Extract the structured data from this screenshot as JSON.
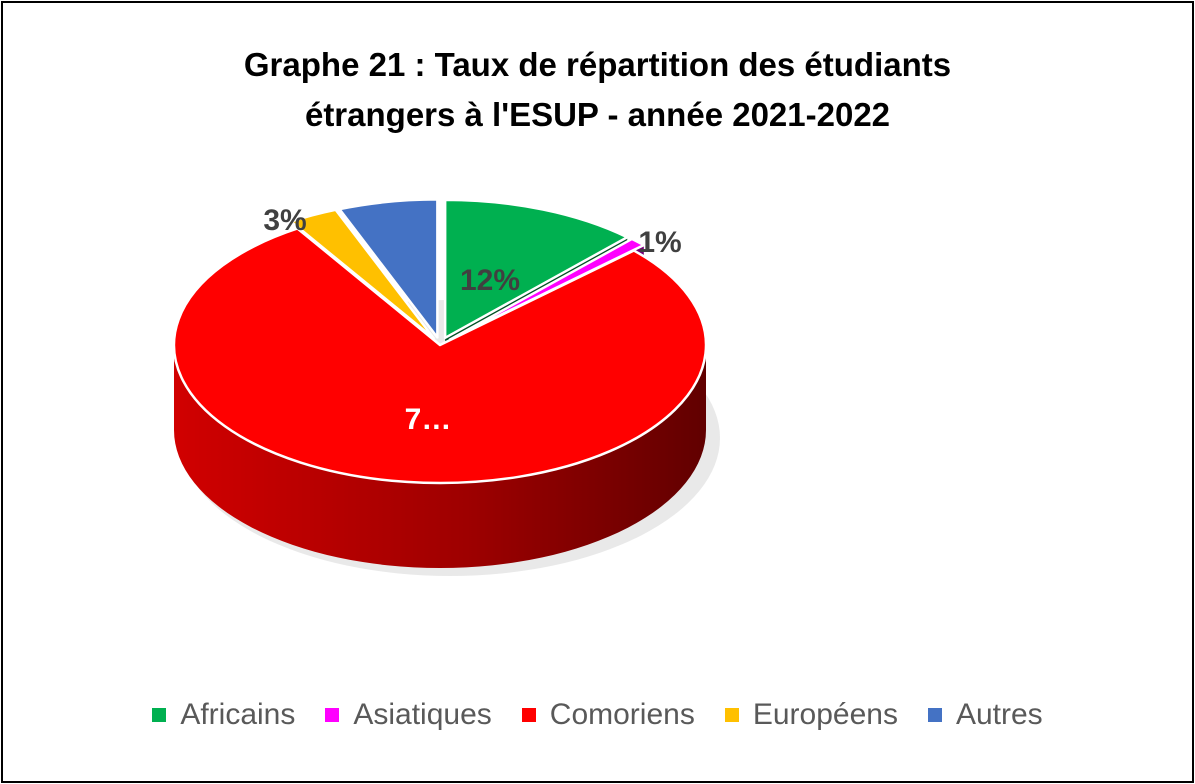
{
  "chart_data": {
    "type": "pie",
    "title": "Graphe 21 : Taux de répartition des étudiants étrangers à l'ESUP - année 2021-2022",
    "title_lines": [
      "Graphe 21 : Taux de répartition des étudiants",
      "étrangers à l'ESUP - année 2021-2022"
    ],
    "style": "3d-exploded",
    "legend_position": "bottom",
    "slices": [
      {
        "name": "Africains",
        "value": 12,
        "label": "12%",
        "color": "#00B050"
      },
      {
        "name": "Asiatiques",
        "value": 1,
        "label": "1%",
        "color": "#FF00FF"
      },
      {
        "name": "Comoriens",
        "value": 78,
        "label": "7…",
        "color": "#FF0000"
      },
      {
        "name": "Européens",
        "value": 3,
        "label": "3%",
        "color": "#FFC000"
      },
      {
        "name": "Autres",
        "value": 6,
        "label": "",
        "color": "#4472C4"
      }
    ]
  }
}
